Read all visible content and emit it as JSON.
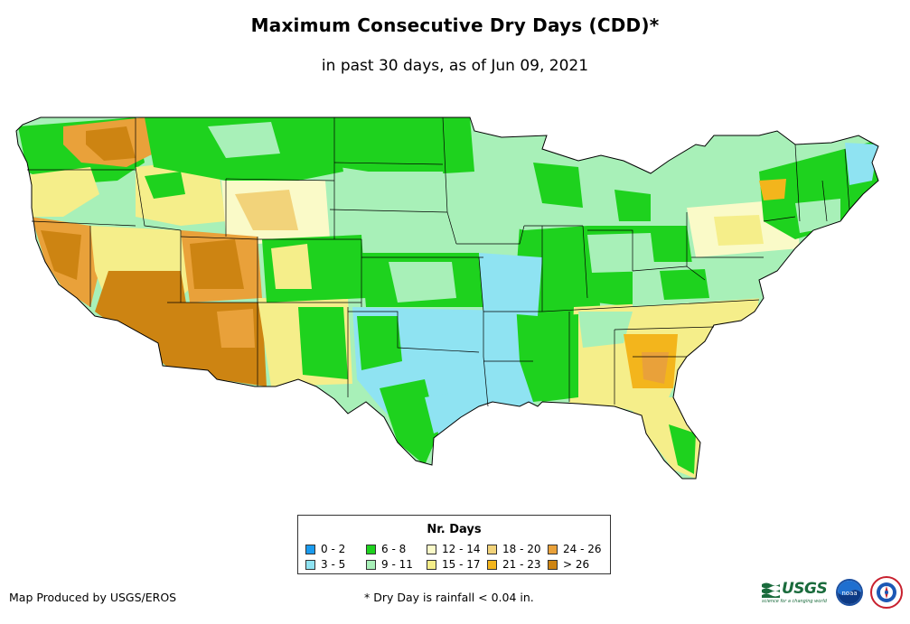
{
  "title": "Maximum Consecutive Dry Days (CDD)*",
  "subtitle": "in past 30 days, as of Jun 09, 2021",
  "legend": {
    "title": "Nr. Days",
    "items": [
      {
        "label": "0 - 2",
        "color": "#1a9bef"
      },
      {
        "label": "3 - 5",
        "color": "#8fe3f2"
      },
      {
        "label": "6 - 8",
        "color": "#1ed21e"
      },
      {
        "label": "9 - 11",
        "color": "#a8f0b8"
      },
      {
        "label": "12 - 14",
        "color": "#fafac8"
      },
      {
        "label": "15 - 17",
        "color": "#f5ee8a"
      },
      {
        "label": "18 - 20",
        "color": "#f2d37a"
      },
      {
        "label": "21 - 23",
        "color": "#f3b51c"
      },
      {
        "label": "24 - 26",
        "color": "#e9a13a"
      },
      {
        "label": "> 26",
        "color": "#cd8412"
      }
    ]
  },
  "credit": "Map Produced by USGS/EROS",
  "footnote": "* Dry Day is rainfall < 0.04 in.",
  "logos": {
    "usgs_text": "USGS",
    "usgs_tagline": "science for a changing world",
    "noaa_text": "noaa"
  }
}
